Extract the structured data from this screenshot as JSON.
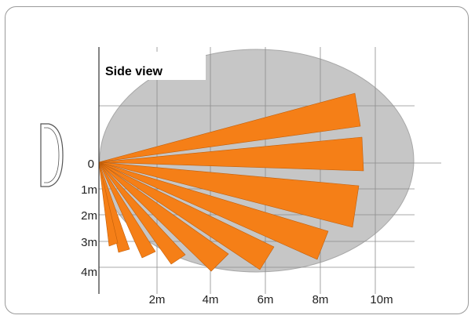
{
  "title": "Side view",
  "x_tick_labels": [
    "2m",
    "4m",
    "6m",
    "8m",
    "10m"
  ],
  "y_tick_labels": [
    "0",
    "1m",
    "2m",
    "3m",
    "4m"
  ],
  "colors": {
    "frame_border": "#9a9a9a",
    "coverage_fill": "#c6c6c6",
    "coverage_stroke": "#a8a8a8",
    "beam_fill": "#f57f17",
    "beam_stroke": "#c25f0a",
    "grid_line": "#8c8c8c",
    "axis_line": "#333333",
    "sensor_stroke": "#555555",
    "label_box": "#ffffff"
  },
  "icons": {
    "sensor": "motion-detector-side-icon"
  },
  "beam_count": 10
}
